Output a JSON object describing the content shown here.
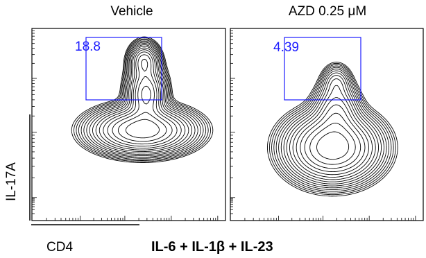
{
  "chart_data": [
    {
      "type": "contour",
      "title": "Vehicle",
      "gate": {
        "value": "18.8",
        "color": "#1a1aff"
      },
      "populations": [
        {
          "name": "main",
          "cx": 0.57,
          "cy": 0.47,
          "sx": 0.13,
          "sy": 0.06,
          "w": 1.0
        },
        {
          "name": "tail",
          "cx": 0.59,
          "cy": 0.66,
          "sx": 0.05,
          "sy": 0.08,
          "w": 0.7
        },
        {
          "name": "top",
          "cx": 0.58,
          "cy": 0.83,
          "sx": 0.04,
          "sy": 0.05,
          "w": 0.45
        }
      ]
    },
    {
      "type": "contour",
      "title": "AZD 0.25 μM",
      "gate": {
        "value": "4.39",
        "color": "#1a1aff"
      },
      "populations": [
        {
          "name": "main",
          "cx": 0.53,
          "cy": 0.38,
          "sx": 0.12,
          "sy": 0.09,
          "w": 1.0
        },
        {
          "name": "tail",
          "cx": 0.55,
          "cy": 0.57,
          "sx": 0.06,
          "sy": 0.08,
          "w": 0.35
        },
        {
          "name": "top",
          "cx": 0.55,
          "cy": 0.72,
          "sx": 0.04,
          "sy": 0.05,
          "w": 0.15
        }
      ]
    }
  ],
  "axes": {
    "ylabel": "IL-17A",
    "xlabel": "CD4"
  },
  "condition": {
    "prefix": "IL-6 + IL-1",
    "beta": "β",
    "suffix": " + IL-23"
  },
  "colors": {
    "gate": "#1a1aff",
    "contour": "#000000"
  }
}
